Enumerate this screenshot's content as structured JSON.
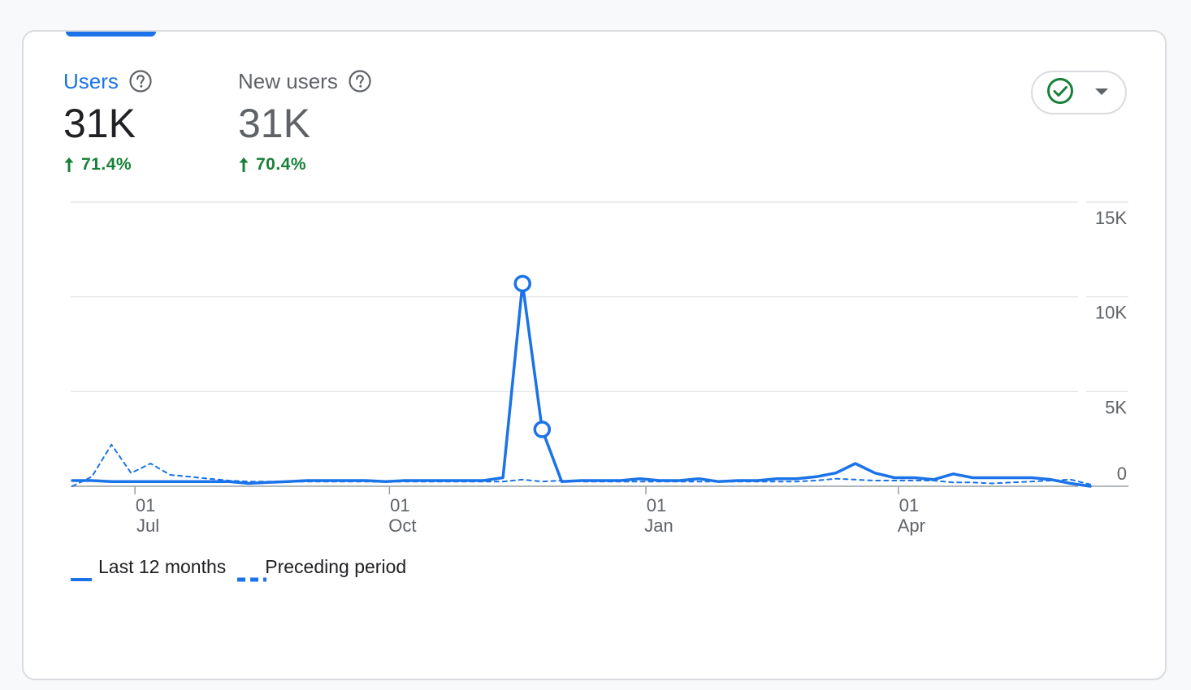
{
  "metrics": [
    {
      "label": "Users",
      "value": "31K",
      "change": "71.4%"
    },
    {
      "label": "New users",
      "value": "31K",
      "change": "70.4%"
    }
  ],
  "colors": {
    "accent": "#1a73e8",
    "positive": "#188038",
    "grid": "#e0e0e0",
    "axis_text": "#5f6368"
  },
  "icons": {
    "help": "help-circle-icon",
    "trend": "arrow-up-icon",
    "status": "check-circle-icon",
    "dropdown": "caret-down-icon"
  },
  "chart_data": {
    "type": "line",
    "title": "",
    "xlabel": "",
    "ylabel": "",
    "y_axis_side": "right",
    "ylim": [
      0,
      15000
    ],
    "y_ticks": [
      0,
      5000,
      10000,
      15000
    ],
    "y_tick_labels": [
      "0",
      "5K",
      "10K",
      "15K"
    ],
    "x_ticks": [
      {
        "week": 3.2,
        "day": "01",
        "month": "Jul"
      },
      {
        "week": 16.2,
        "day": "01",
        "month": "Oct"
      },
      {
        "week": 29.3,
        "day": "01",
        "month": "Jan"
      },
      {
        "week": 42.2,
        "day": "01",
        "month": "Apr"
      }
    ],
    "x_range": [
      0,
      52
    ],
    "legend_position": "bottom-left",
    "grid": true,
    "series": [
      {
        "name": "Last 12 months",
        "style": "solid",
        "highlight_points": [
          23,
          24
        ],
        "values": [
          300,
          300,
          250,
          250,
          250,
          250,
          250,
          250,
          250,
          150,
          200,
          250,
          300,
          300,
          300,
          300,
          250,
          300,
          300,
          300,
          300,
          300,
          450,
          10700,
          3000,
          250,
          300,
          300,
          300,
          400,
          300,
          300,
          400,
          250,
          300,
          300,
          400,
          400,
          500,
          700,
          1200,
          700,
          450,
          450,
          350,
          650,
          450,
          450,
          450,
          450,
          350,
          150,
          0
        ]
      },
      {
        "name": "Preceding period",
        "style": "dashed",
        "values": [
          0,
          500,
          2200,
          700,
          1200,
          600,
          500,
          400,
          300,
          250,
          250,
          250,
          250,
          250,
          250,
          250,
          250,
          250,
          250,
          250,
          250,
          250,
          250,
          350,
          250,
          300,
          250,
          250,
          250,
          250,
          250,
          250,
          250,
          250,
          250,
          250,
          250,
          250,
          300,
          400,
          350,
          300,
          300,
          300,
          300,
          200,
          200,
          150,
          200,
          250,
          300,
          350,
          100
        ]
      }
    ]
  }
}
